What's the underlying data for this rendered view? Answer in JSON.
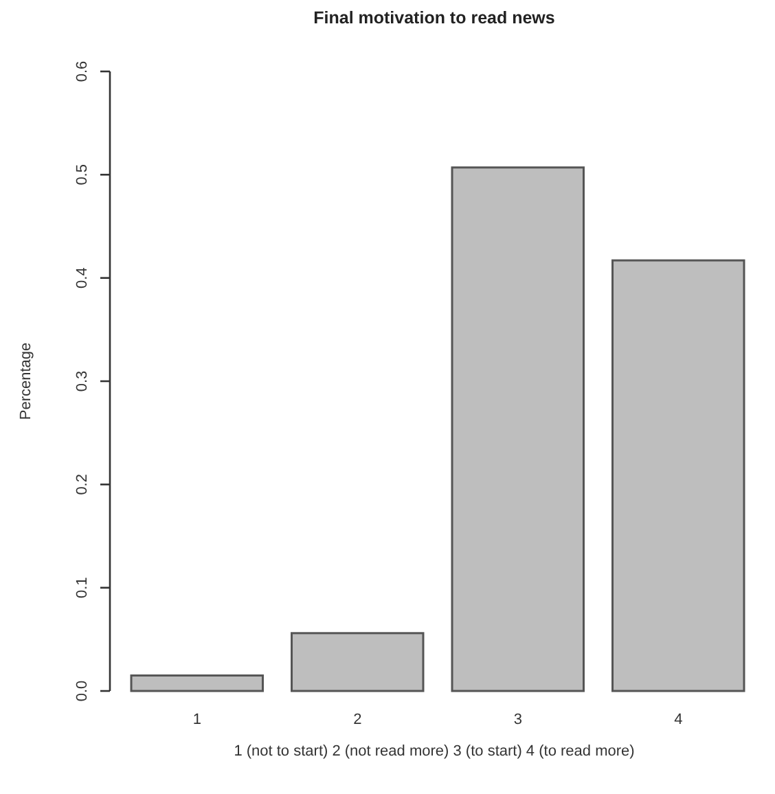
{
  "chart_data": {
    "type": "bar",
    "title": "Final motivation to read news",
    "xlabel": "1 (not to start) 2 (not read more) 3 (to start) 4 (to read more)",
    "ylabel": "Percentage",
    "categories": [
      "1",
      "2",
      "3",
      "4"
    ],
    "values": [
      0.015,
      0.056,
      0.507,
      0.417
    ],
    "color": "#bebebe",
    "ylim": [
      0,
      0.6
    ],
    "yticks": [
      {
        "value": 0,
        "label": "0.0"
      },
      {
        "value": 0.1,
        "label": "0.1"
      },
      {
        "value": 0.2,
        "label": "0.2"
      },
      {
        "value": 0.3,
        "label": "0.3"
      },
      {
        "value": 0.4,
        "label": "0.4"
      },
      {
        "value": 0.5,
        "label": "0.5"
      },
      {
        "value": 0.6,
        "label": "0.6"
      }
    ],
    "grid": false
  }
}
